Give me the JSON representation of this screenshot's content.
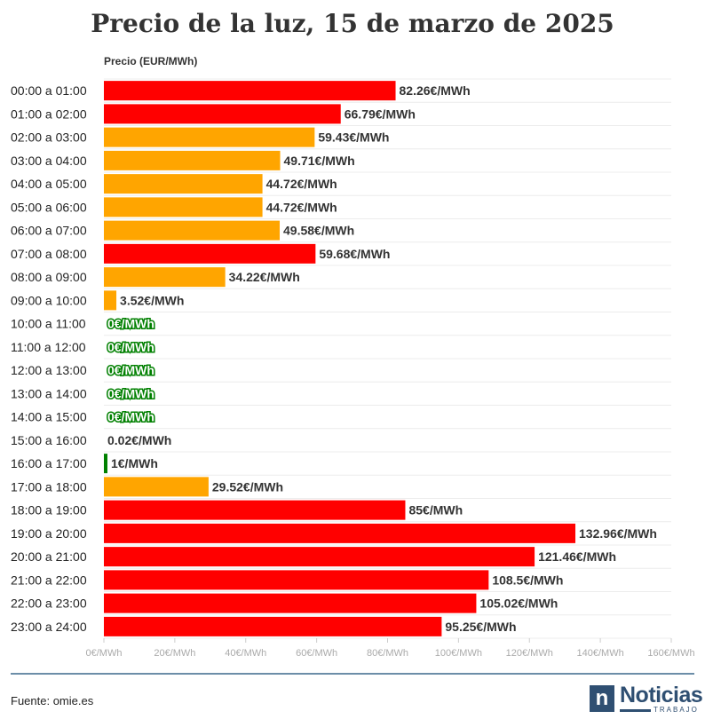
{
  "header": {
    "title": "Precio de la luz, 15 de marzo de 2025"
  },
  "chart_data": {
    "type": "bar",
    "orientation": "horizontal",
    "title": "Precio de la luz, 15 de marzo de 2025",
    "ylabel": "Precio (EUR/MWh)",
    "xlim": [
      0,
      160
    ],
    "x_ticks": [
      0,
      20,
      40,
      60,
      80,
      100,
      120,
      140,
      160
    ],
    "x_tick_labels": [
      "0€/MWh",
      "20€/MWh",
      "40€/MWh",
      "60€/MWh",
      "80€/MWh",
      "100€/MWh",
      "120€/MWh",
      "140€/MWh",
      "160€/MWh"
    ],
    "categories": [
      "00:00 a 01:00",
      "01:00 a 02:00",
      "02:00 a 03:00",
      "03:00 a 04:00",
      "04:00 a 05:00",
      "05:00 a 06:00",
      "06:00 a 07:00",
      "07:00 a 08:00",
      "08:00 a 09:00",
      "09:00 a 10:00",
      "10:00 a 11:00",
      "11:00 a 12:00",
      "12:00 a 13:00",
      "13:00 a 14:00",
      "14:00 a 15:00",
      "15:00 a 16:00",
      "16:00 a 17:00",
      "17:00 a 18:00",
      "18:00 a 19:00",
      "19:00 a 20:00",
      "20:00 a 21:00",
      "21:00 a 22:00",
      "22:00 a 23:00",
      "23:00 a 24:00"
    ],
    "values": [
      82.26,
      66.79,
      59.43,
      49.71,
      44.72,
      44.72,
      49.58,
      59.68,
      34.22,
      3.52,
      0,
      0,
      0,
      0,
      0,
      0.02,
      1,
      29.52,
      85,
      132.96,
      121.46,
      108.5,
      105.02,
      95.25
    ],
    "value_labels": [
      "82.26€/MWh",
      "66.79€/MWh",
      "59.43€/MWh",
      "49.71€/MWh",
      "44.72€/MWh",
      "44.72€/MWh",
      "49.58€/MWh",
      "59.68€/MWh",
      "34.22€/MWh",
      "3.52€/MWh",
      "0€/MWh",
      "0€/MWh",
      "0€/MWh",
      "0€/MWh",
      "0€/MWh",
      "0.02€/MWh",
      "1€/MWh",
      "29.52€/MWh",
      "85€/MWh",
      "132.96€/MWh",
      "121.46€/MWh",
      "108.5€/MWh",
      "105.02€/MWh",
      "95.25€/MWh"
    ],
    "bar_colors": [
      "red",
      "red",
      "orange",
      "orange",
      "orange",
      "orange",
      "orange",
      "red",
      "orange",
      "orange",
      "green",
      "green",
      "green",
      "green",
      "green",
      "green",
      "green",
      "orange",
      "red",
      "red",
      "red",
      "red",
      "red",
      "red"
    ],
    "colors": {
      "red": "#ff0000",
      "orange": "#ffa500",
      "green": "#008000"
    }
  },
  "footer": {
    "source": "Fuente: omie.es"
  },
  "logo": {
    "mark": "n",
    "name": "Noticias",
    "sub": "TRABAJO"
  }
}
